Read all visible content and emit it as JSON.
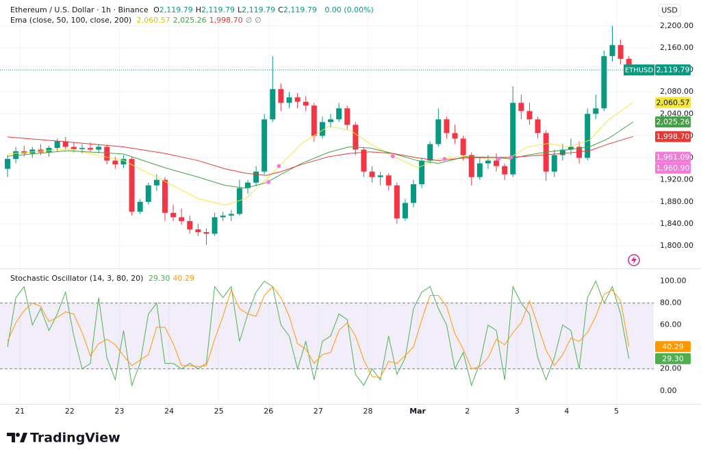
{
  "chart_data": [
    {
      "type": "candlestick",
      "title": "Ethereum / U.S. Dollar · 1h · Binance",
      "ohlc": [
        {
          "key": "O",
          "label": "2,119.79"
        },
        {
          "key": "H",
          "label": "2,119.79"
        },
        {
          "key": "L",
          "label": "2,119.79"
        },
        {
          "key": "C",
          "label": "2,119.79"
        }
      ],
      "change": "0.00 (0.00%)",
      "currency": "USD",
      "up_color": "#089981",
      "down_color": "#f23645",
      "xlim": [
        -7,
        306
      ],
      "ylim": [
        1759,
        2247
      ],
      "yticks": [
        {
          "value": 1800,
          "label": "1,800.00"
        },
        {
          "value": 1840,
          "label": "1,840.00"
        },
        {
          "value": 1880,
          "label": "1,880.00"
        },
        {
          "value": 1920,
          "label": "1,920.00"
        },
        {
          "value": 1960,
          "label": "1,960.00"
        },
        {
          "value": 2000,
          "label": "2,000.00"
        },
        {
          "value": 2040,
          "label": "2,040.00"
        },
        {
          "value": 2080,
          "label": "2,080.00"
        },
        {
          "value": 2120,
          "label": "2,120.00"
        },
        {
          "value": 2160,
          "label": "2,160.00"
        },
        {
          "value": 2200,
          "label": "2,200.00"
        }
      ],
      "grid": true,
      "x": [
        -6,
        -2,
        2,
        6,
        10,
        14,
        18,
        22,
        26,
        30,
        34,
        38,
        42,
        46,
        50,
        54,
        58,
        62,
        66,
        70,
        74,
        78,
        82,
        86,
        90,
        94,
        98,
        102,
        106,
        110,
        114,
        118,
        122,
        126,
        130,
        134,
        138,
        142,
        146,
        150,
        154,
        158,
        162,
        166,
        170,
        174,
        178,
        182,
        186,
        190,
        194,
        198,
        202,
        206,
        210,
        214,
        218,
        222,
        226,
        230,
        234,
        238,
        242,
        246,
        250,
        254,
        258,
        262,
        266,
        270,
        274,
        278,
        282,
        286,
        290,
        294
      ],
      "open": [
        1940,
        1958,
        1972,
        1968,
        1975,
        1970,
        1978,
        1990,
        1980,
        1976,
        1978,
        1975,
        1980,
        1955,
        1948,
        1958,
        1862,
        1880,
        1910,
        1920,
        1860,
        1852,
        1845,
        1830,
        1825,
        1822,
        1852,
        1855,
        1858,
        1905,
        1915,
        1935,
        2030,
        2085,
        2060,
        2070,
        2062,
        2055,
        2000,
        2025,
        2030,
        2050,
        2020,
        1975,
        1935,
        1925,
        1928,
        1910,
        1850,
        1878,
        1912,
        1955,
        1985,
        2030,
        2005,
        1995,
        1965,
        1925,
        1950,
        1955,
        1945,
        1930,
        2060,
        2045,
        2030,
        2005,
        1935,
        1965,
        1975,
        1980,
        1960,
        2040,
        2050,
        2145,
        2165,
        2140
      ],
      "high": [
        1965,
        1980,
        1982,
        1980,
        1985,
        1982,
        1995,
        1998,
        1988,
        1985,
        1988,
        1985,
        1984,
        1962,
        1965,
        1962,
        1885,
        1915,
        1930,
        1925,
        1875,
        1868,
        1855,
        1840,
        1832,
        1860,
        1862,
        1865,
        1920,
        1920,
        1945,
        2040,
        2145,
        2095,
        2080,
        2078,
        2072,
        2060,
        2035,
        2040,
        2060,
        2055,
        2025,
        1980,
        1945,
        1935,
        1932,
        1915,
        1885,
        1920,
        1960,
        1990,
        2050,
        2035,
        2020,
        2000,
        1970,
        1960,
        1965,
        1968,
        1950,
        2090,
        2075,
        2060,
        2035,
        2010,
        1975,
        1985,
        1995,
        1990,
        2050,
        2075,
        2155,
        2200,
        2175,
        2145
      ],
      "low": [
        1925,
        1950,
        1962,
        1960,
        1965,
        1962,
        1972,
        1975,
        1970,
        1968,
        1970,
        1968,
        1948,
        1940,
        1942,
        1855,
        1858,
        1875,
        1900,
        1845,
        1845,
        1838,
        1822,
        1818,
        1802,
        1818,
        1845,
        1845,
        1855,
        1895,
        1908,
        1930,
        2025,
        2045,
        2050,
        2050,
        2045,
        1990,
        1995,
        2015,
        2025,
        2010,
        1965,
        1925,
        1915,
        1910,
        1900,
        1840,
        1845,
        1870,
        1905,
        1950,
        1980,
        1995,
        1985,
        1955,
        1910,
        1920,
        1940,
        1935,
        1920,
        1925,
        2030,
        2020,
        1995,
        1918,
        1925,
        1955,
        1965,
        1950,
        1955,
        2030,
        2045,
        2135,
        2130,
        2115
      ],
      "close": [
        1958,
        1972,
        1968,
        1975,
        1970,
        1978,
        1990,
        1980,
        1976,
        1978,
        1975,
        1980,
        1955,
        1948,
        1958,
        1862,
        1880,
        1910,
        1920,
        1860,
        1852,
        1845,
        1830,
        1825,
        1822,
        1852,
        1855,
        1858,
        1905,
        1915,
        1935,
        2030,
        2085,
        2060,
        2070,
        2062,
        2055,
        2000,
        2025,
        2030,
        2050,
        2020,
        1975,
        1935,
        1925,
        1928,
        1910,
        1850,
        1878,
        1912,
        1955,
        1985,
        2030,
        2005,
        1995,
        1965,
        1925,
        1950,
        1955,
        1945,
        1930,
        2060,
        2045,
        2030,
        2005,
        1935,
        1965,
        1975,
        1980,
        1960,
        2040,
        2050,
        2145,
        2165,
        2140,
        2119.79
      ],
      "last_price": {
        "symbol": "ETHUSD",
        "value": 2119.79,
        "label": "2,119.79",
        "color": "#089981"
      },
      "ema": {
        "label": "Ema (close, 50, 100, close, 200)",
        "extra": [
          "∅",
          "∅"
        ],
        "x": [
          -6,
          23,
          50,
          70,
          86,
          99,
          109,
          119,
          126,
          136,
          149,
          159,
          169,
          180,
          192,
          202,
          215,
          228,
          237,
          245,
          255,
          265,
          275,
          284,
          296
        ],
        "series": [
          {
            "color": "#f5e63c",
            "text_color": "#131722",
            "values": [
              1967,
              1976,
              1955,
              1917,
              1886,
              1874,
              1886,
              1921,
              1948,
              1986,
              2017,
              2011,
              1986,
              1963,
              1942,
              1958,
              1963,
              1958,
              1961,
              1980,
              1986,
              1980,
              1992,
              2029,
              2060.57
            ],
            "value_label": "2,060.57"
          },
          {
            "color": "#43a047",
            "text_color": "#ffffff",
            "values": [
              1963,
              1973,
              1967,
              1942,
              1925,
              1910,
              1905,
              1915,
              1930,
              1950,
              1970,
              1980,
              1978,
              1968,
              1955,
              1950,
              1962,
              1961,
              1958,
              1965,
              1971,
              1975,
              1980,
              1995,
              2025.26
            ],
            "value_label": "2,025.26"
          },
          {
            "color": "#e53935",
            "text_color": "#ffffff",
            "values": [
              1998,
              1989,
              1980,
              1968,
              1955,
              1940,
              1932,
              1928,
              1935,
              1948,
              1962,
              1968,
              1971,
              1968,
              1960,
              1955,
              1960,
              1961,
              1961,
              1963,
              1966,
              1969,
              1973,
              1985,
              1998.7
            ],
            "value_label": "1,998.70"
          }
        ]
      },
      "cross_markers": {
        "color": "#f27bd9",
        "x": [
          120,
          125,
          180,
          205,
          231,
          237
        ],
        "values": [
          1916,
          1945,
          1963,
          1958,
          1958,
          1961
        ]
      },
      "cross_tags": [
        {
          "value": 1961.09,
          "label": "1,961.09"
        },
        {
          "value": 1960.9,
          "label": "1,960.90"
        }
      ]
    },
    {
      "type": "line",
      "title": "Stochastic Oscillator (14, 3, 80, 20)",
      "xlim": [
        -7,
        306
      ],
      "ylim": [
        -12,
        111
      ],
      "yticks": [
        {
          "value": 0,
          "label": "0.00"
        },
        {
          "value": 20,
          "label": "20.00"
        },
        {
          "value": 40,
          "label": "40.00"
        },
        {
          "value": 60,
          "label": "60.00"
        },
        {
          "value": 80,
          "label": "80.00"
        },
        {
          "value": 100,
          "label": "100.00"
        }
      ],
      "band": [
        20,
        80
      ],
      "band_color": "#7e57c2",
      "xticks": [
        {
          "value": 0,
          "label": "21"
        },
        {
          "value": 24,
          "label": "22"
        },
        {
          "value": 48,
          "label": "23"
        },
        {
          "value": 72,
          "label": "24"
        },
        {
          "value": 96,
          "label": "25"
        },
        {
          "value": 120,
          "label": "26"
        },
        {
          "value": 144,
          "label": "27"
        },
        {
          "value": 168,
          "label": "28"
        },
        {
          "value": 192,
          "label": "Mar"
        },
        {
          "value": 216,
          "label": "2"
        },
        {
          "value": 240,
          "label": "3"
        },
        {
          "value": 264,
          "label": "4"
        },
        {
          "value": 288,
          "label": "5"
        }
      ],
      "x": [
        -6,
        -2,
        2,
        6,
        10,
        14,
        18,
        22,
        26,
        30,
        34,
        38,
        42,
        46,
        50,
        54,
        58,
        62,
        66,
        70,
        74,
        78,
        82,
        86,
        90,
        94,
        98,
        102,
        106,
        110,
        114,
        118,
        122,
        126,
        130,
        134,
        138,
        142,
        146,
        150,
        154,
        158,
        162,
        166,
        170,
        174,
        178,
        182,
        186,
        190,
        194,
        198,
        202,
        206,
        210,
        214,
        218,
        222,
        226,
        230,
        234,
        238,
        242,
        246,
        250,
        254,
        258,
        262,
        266,
        270,
        274,
        278,
        282,
        286,
        290,
        294
      ],
      "series": [
        {
          "color": "#4caf50",
          "values": [
            40,
            85,
            95,
            60,
            75,
            55,
            70,
            90,
            50,
            20,
            25,
            85,
            30,
            10,
            55,
            5,
            25,
            70,
            80,
            25,
            25,
            20,
            25,
            20,
            25,
            95,
            85,
            95,
            45,
            70,
            90,
            100,
            95,
            60,
            50,
            20,
            45,
            10,
            45,
            50,
            70,
            65,
            15,
            5,
            20,
            10,
            50,
            15,
            30,
            75,
            90,
            95,
            75,
            60,
            20,
            35,
            5,
            25,
            60,
            55,
            10,
            95,
            80,
            70,
            30,
            10,
            30,
            60,
            55,
            20,
            85,
            100,
            80,
            95,
            70,
            29.3
          ],
          "value_label": "29.30"
        },
        {
          "color": "#ff9800",
          "values": [
            45,
            62,
            73,
            80,
            77,
            63,
            67,
            72,
            70,
            53,
            32,
            43,
            47,
            42,
            32,
            23,
            28,
            33,
            58,
            58,
            43,
            23,
            23,
            22,
            23,
            47,
            68,
            92,
            75,
            70,
            68,
            87,
            95,
            85,
            68,
            43,
            38,
            25,
            33,
            35,
            55,
            62,
            50,
            28,
            13,
            12,
            27,
            25,
            32,
            40,
            65,
            87,
            87,
            77,
            52,
            38,
            20,
            22,
            30,
            47,
            42,
            53,
            62,
            82,
            60,
            37,
            23,
            33,
            48,
            45,
            53,
            68,
            88,
            92,
            82,
            40.29
          ],
          "value_label": "40.29"
        }
      ]
    }
  ],
  "footer": {
    "brand": "TradingView"
  }
}
